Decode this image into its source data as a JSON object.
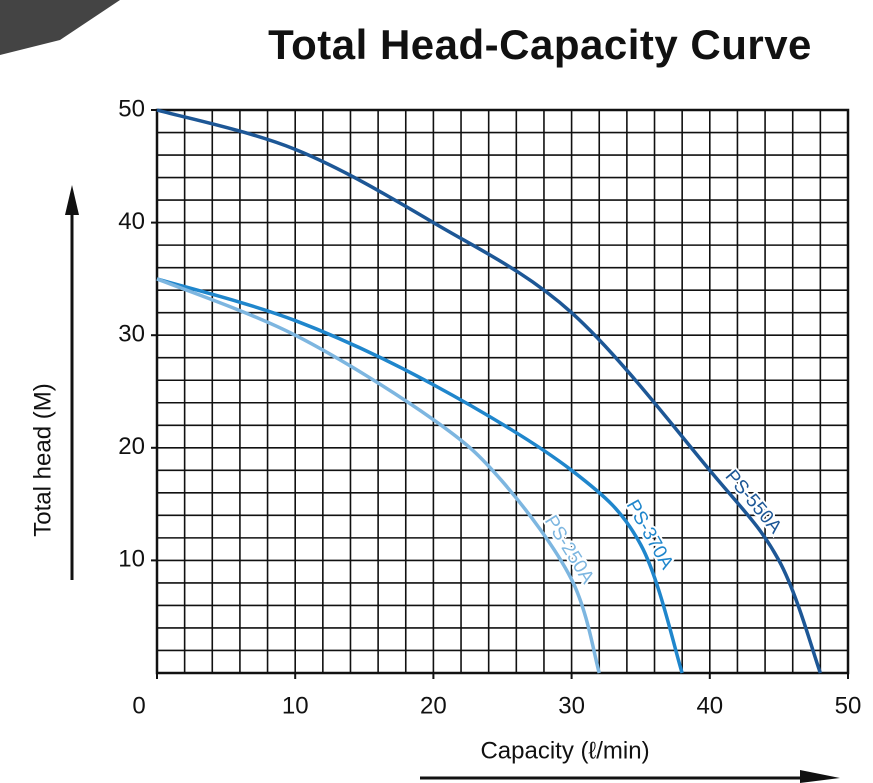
{
  "chart_data": {
    "type": "line",
    "title": "Total Head-Capacity Curve",
    "y_label": "Total head (M)",
    "x_label": "Capacity (ℓ/min)",
    "xlim": [
      0,
      50
    ],
    "ylim": [
      0,
      50
    ],
    "xticks": [
      0,
      10,
      20,
      30,
      40,
      50
    ],
    "yticks": [
      10,
      20,
      30,
      40,
      50
    ],
    "grid": true,
    "grid_step": 2,
    "series": [
      {
        "name": "PS-550A",
        "color": "#1d5796",
        "x": [
          0,
          10,
          20,
          30,
          40,
          45,
          48
        ],
        "values": [
          50,
          46.5,
          40,
          32,
          18,
          10,
          0
        ]
      },
      {
        "name": "PS-370A",
        "color": "#1f86cc",
        "x": [
          0,
          10,
          20,
          30,
          35,
          38
        ],
        "values": [
          35,
          31.3,
          25.6,
          18,
          11.4,
          0
        ]
      },
      {
        "name": "PS-250A",
        "color": "#7db6e0",
        "x": [
          0,
          10,
          20,
          25,
          30,
          32
        ],
        "values": [
          35,
          30,
          22.5,
          17,
          8.3,
          0
        ]
      }
    ]
  }
}
